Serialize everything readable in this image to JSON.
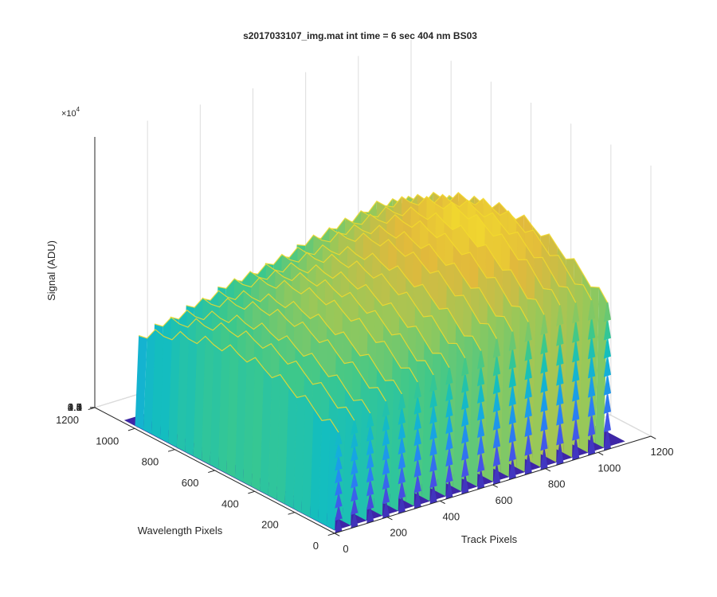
{
  "chart_data": {
    "type": "surface3d",
    "title": "s2017033107_img.mat int time = 6 sec  404 nm BS03",
    "xlabel": "Track Pixels",
    "ylabel": "Wavelength Pixels",
    "zlabel": "Signal (ADU)",
    "z_multiplier_label": "×10",
    "z_multiplier_exp": "4",
    "xlim": [
      0,
      1200
    ],
    "ylim": [
      0,
      1200
    ],
    "zlim": [
      0,
      45000
    ],
    "x_ticks": [
      "0",
      "200",
      "400",
      "600",
      "800",
      "1000",
      "1200"
    ],
    "y_ticks": [
      "0",
      "200",
      "400",
      "600",
      "800",
      "1000",
      "1200"
    ],
    "z_ticks": [
      "0",
      "0.5",
      "1",
      "1.5",
      "2",
      "2.5",
      "3",
      "3.5",
      "4",
      "4.5"
    ],
    "grid": true,
    "colormap": "parula",
    "data_extent": {
      "x": [
        0,
        1100
      ],
      "y": [
        0,
        1050
      ]
    },
    "signal_region_y": [
      0,
      1000
    ],
    "track_centers_x": [
      15,
      75,
      135,
      195,
      255,
      315,
      375,
      435,
      495,
      555,
      615,
      675,
      735,
      795,
      855,
      915,
      975,
      1035
    ],
    "track_peak_values": [
      21000,
      22500,
      23000,
      24500,
      25000,
      26500,
      27000,
      27500,
      28500,
      29000,
      30500,
      31000,
      32000,
      32500,
      33500,
      33000,
      32500,
      31000
    ],
    "baseline_value": 500
  }
}
